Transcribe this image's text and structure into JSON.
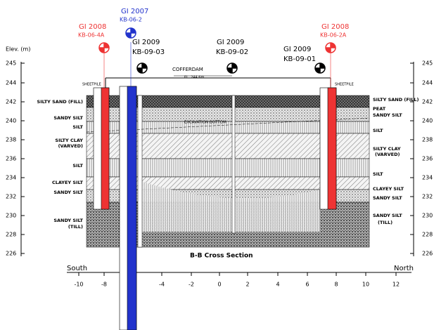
{
  "axis": {
    "y_label": "Elev. (m)",
    "elevations": [
      "245",
      "244",
      "242",
      "240",
      "238",
      "236",
      "234",
      "232",
      "230",
      "228",
      "226"
    ],
    "distances": [
      "-10",
      "-8",
      "-4",
      "-2",
      "0",
      "2",
      "4",
      "6",
      "8",
      "10",
      "12"
    ]
  },
  "boreholes": [
    {
      "year": "GI 2008",
      "id": "KB-06-4A"
    },
    {
      "year": "GI 2007",
      "id": "KB-06-2"
    },
    {
      "year": "GI 2009",
      "id": "KB-09-03"
    },
    {
      "year": "GI 2009",
      "id": "KB-09-02"
    },
    {
      "year": "GI 2009",
      "id": "KB-09-01"
    },
    {
      "year": "GI 2008",
      "id": "KB-06-2A"
    }
  ],
  "left_strata": [
    "SILTY SAND (FILL)",
    "SANDY SILT",
    "SILT",
    "SILTY CLAY",
    "(VARVED)",
    "SILT",
    "CLAYEY SILT",
    "SANDY SILT",
    "SANDY SILT",
    "(TILL)"
  ],
  "right_strata": [
    "SILTY SAND (FILL)",
    "PEAT",
    "SANDY SILT",
    "SILT",
    "SILTY CLAY",
    "(VARVED)",
    "SILT",
    "CLAYEY SILT",
    "SANDY SILT",
    "SANDY SILT",
    "(TILL)"
  ],
  "notes": {
    "cofferdam": "COFFERDAM",
    "elevation": "EL. 244.6m",
    "sheetpile": "SHEETPILE",
    "excavation": "EXCAVATION BOTTOM",
    "section": "B-B Cross Section",
    "south": "South",
    "north": "North"
  }
}
